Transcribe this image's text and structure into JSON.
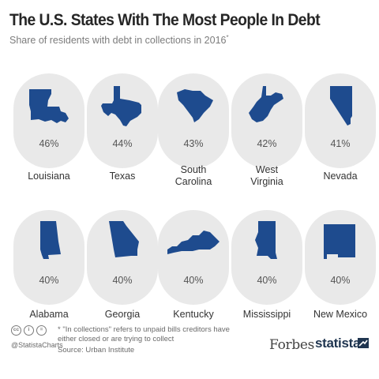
{
  "header": {
    "title": "The U.S. States With The Most People In Debt",
    "subtitle": "Share of residents with debt in collections in 2016",
    "subtitle_marker": "*"
  },
  "chart_data": {
    "type": "table",
    "title": "The U.S. States With The Most People In Debt",
    "subtitle": "Share of residents with debt in collections in 2016*",
    "unit": "%",
    "items": [
      {
        "state": "Louisiana",
        "value": 46,
        "label": "46%",
        "icon": "louisiana-shape-icon"
      },
      {
        "state": "Texas",
        "value": 44,
        "label": "44%",
        "icon": "texas-shape-icon"
      },
      {
        "state": "South\nCarolina",
        "value": 43,
        "label": "43%",
        "icon": "south-carolina-shape-icon"
      },
      {
        "state": "West\nVirginia",
        "value": 42,
        "label": "42%",
        "icon": "west-virginia-shape-icon"
      },
      {
        "state": "Nevada",
        "value": 41,
        "label": "41%",
        "icon": "nevada-shape-icon"
      },
      {
        "state": "Alabama",
        "value": 40,
        "label": "40%",
        "icon": "alabama-shape-icon"
      },
      {
        "state": "Georgia",
        "value": 40,
        "label": "40%",
        "icon": "georgia-shape-icon"
      },
      {
        "state": "Kentucky",
        "value": 40,
        "label": "40%",
        "icon": "kentucky-shape-icon"
      },
      {
        "state": "Mississippi",
        "value": 40,
        "label": "40%",
        "icon": "mississippi-shape-icon"
      },
      {
        "state": "New Mexico",
        "value": 40,
        "label": "40%",
        "icon": "new-mexico-shape-icon"
      }
    ]
  },
  "footer": {
    "license_icons": [
      "cc-icon",
      "attribution-icon",
      "no-derivatives-icon"
    ],
    "cc_text": "cc",
    "by_text": "i",
    "nd_text": "=",
    "handle": "@StatistaCharts",
    "footnote": "* \"In collections\" refers to unpaid bills creditors have\neither closed or are trying to collect",
    "source": "Source: Urban Institute",
    "brand_forbes": "Forbes",
    "brand_statista": "statista"
  },
  "colors": {
    "shape": "#1e4b8e",
    "tile": "#e9e9e9",
    "statista": "#1f3550"
  }
}
